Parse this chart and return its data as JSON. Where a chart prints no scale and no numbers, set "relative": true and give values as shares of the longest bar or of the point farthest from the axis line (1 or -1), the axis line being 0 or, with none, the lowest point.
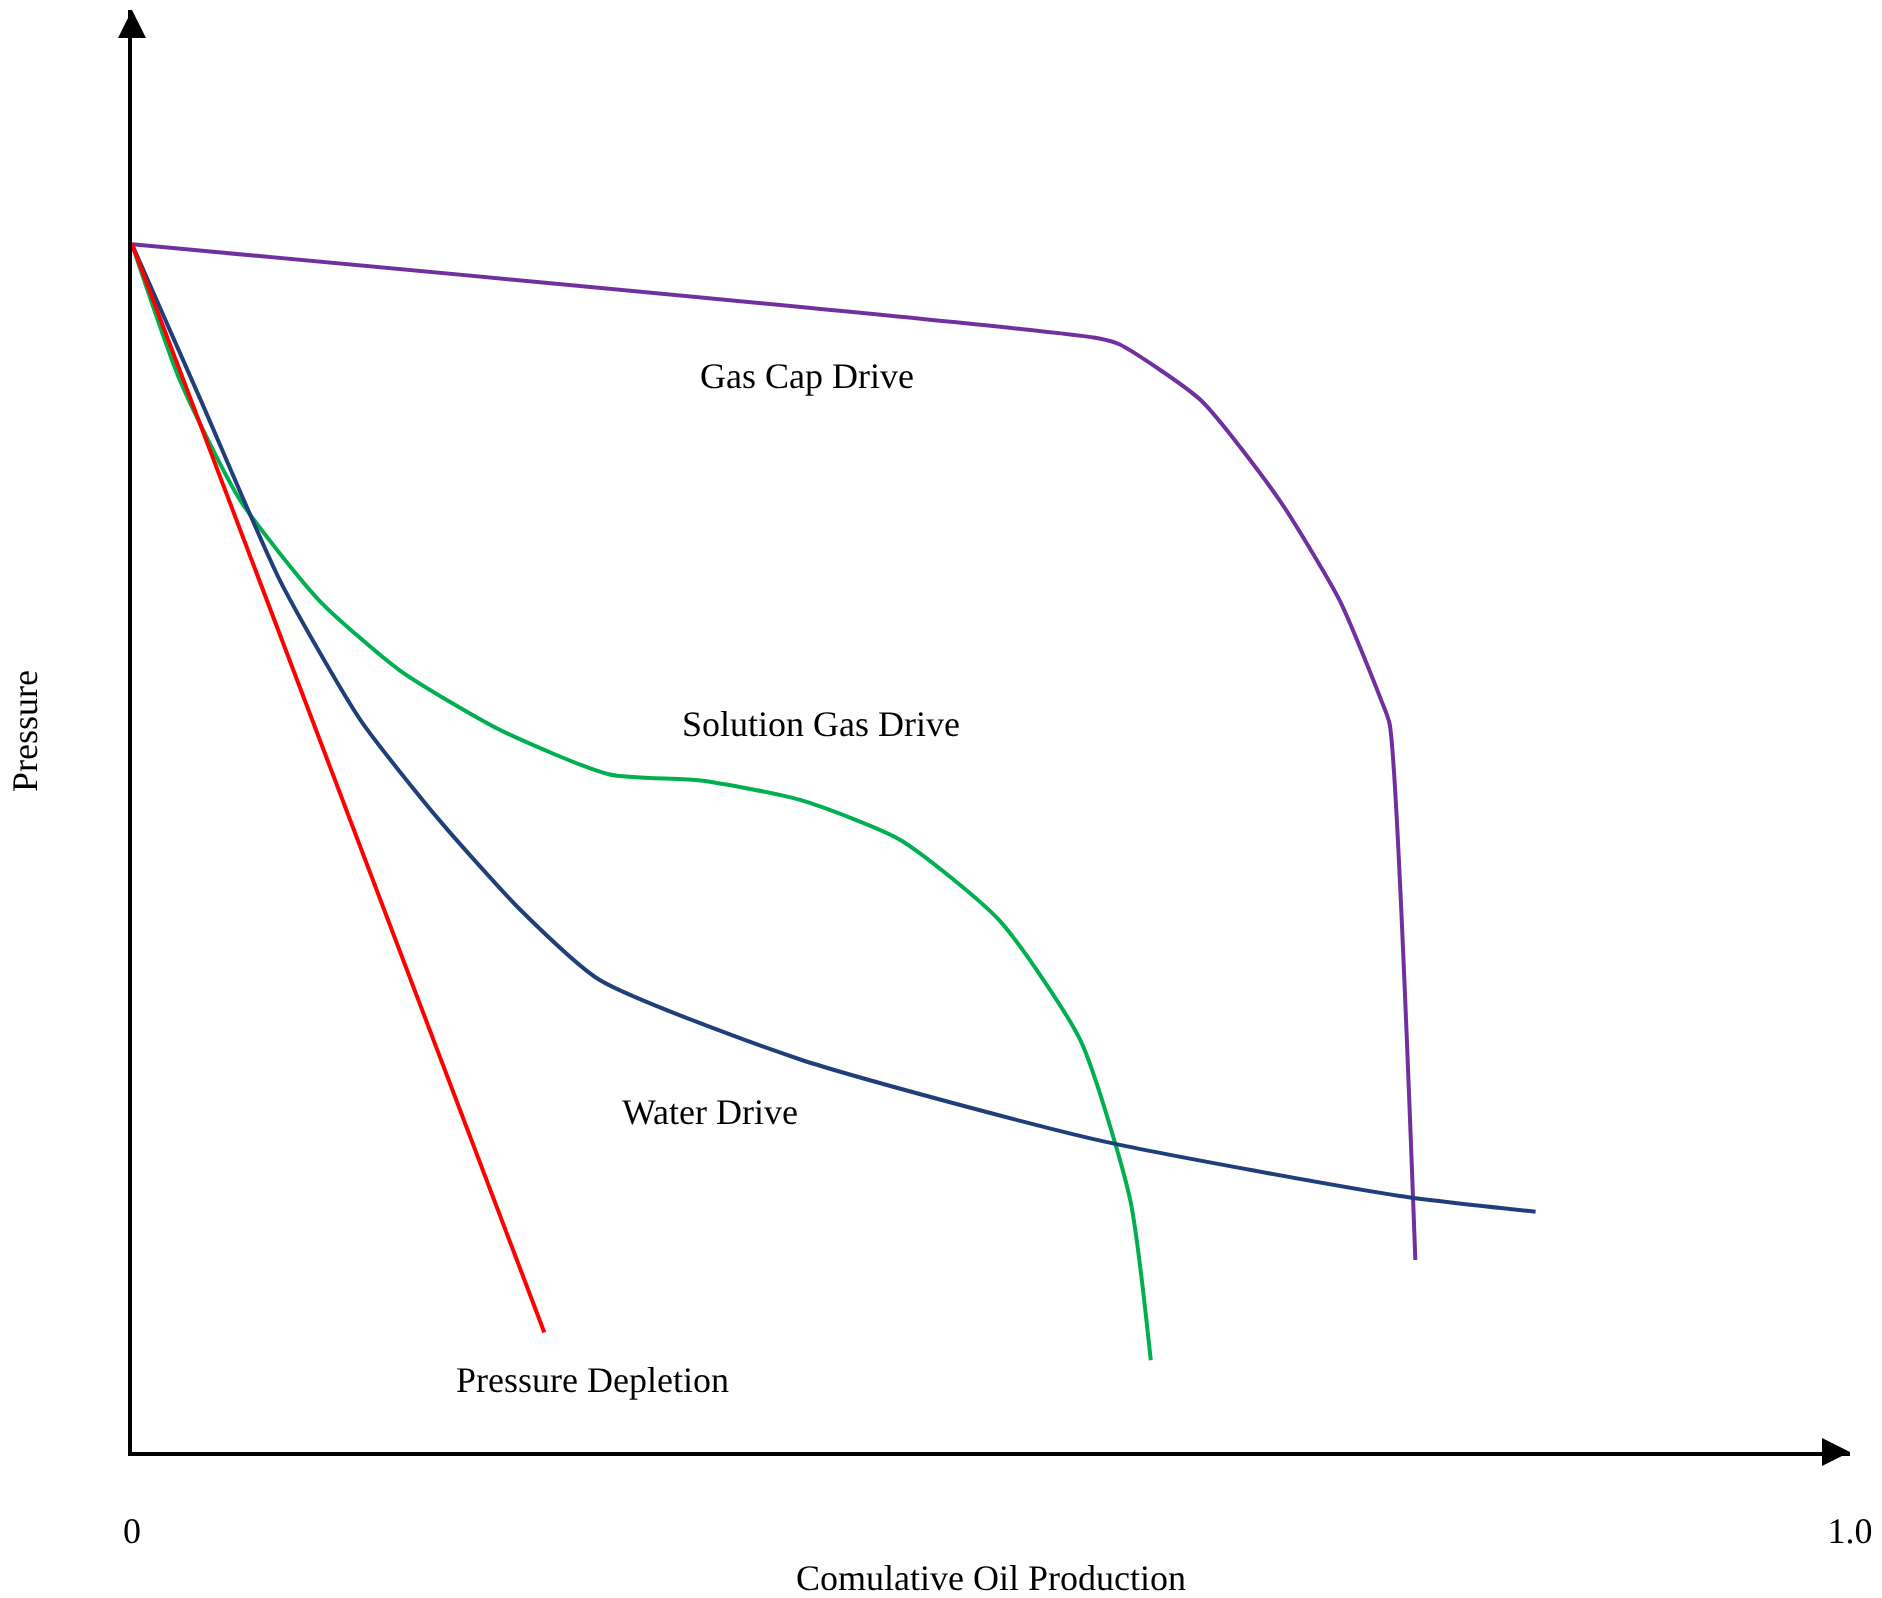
{
  "chart_data": {
    "type": "line",
    "relative": true,
    "xlabel": "Comulative Oil Production",
    "ylabel": "Pressure",
    "xlim": [
      0,
      1.0
    ],
    "xticks": [
      0,
      {
        "value": 1,
        "label": "1.0"
      }
    ],
    "legend": false,
    "marker": "none",
    "line_style": "solid",
    "series": [
      {
        "name": "Gas Cap Drive",
        "color": "#7030a0",
        "x": [
          0,
          0.563,
          0.575,
          0.622,
          0.668,
          0.703,
          0.727,
          0.732,
          0.747
        ],
        "values": [
          1,
          0.922,
          0.917,
          0.871,
          0.788,
          0.705,
          0.623,
          0.603,
          0.159
        ]
      },
      {
        "name": "Solution Gas Drive",
        "color": "#00b050",
        "x": [
          0,
          0.028,
          0.063,
          0.109,
          0.156,
          0.214,
          0.278,
          0.331,
          0.389,
          0.447,
          0.505,
          0.552,
          0.581,
          0.593
        ],
        "values": [
          1,
          0.887,
          0.788,
          0.705,
          0.647,
          0.598,
          0.561,
          0.556,
          0.54,
          0.507,
          0.44,
          0.341,
          0.209,
          0.076
        ]
      },
      {
        "name": "Water Drive",
        "color": "#1f3f7a",
        "x": [
          0,
          0.04,
          0.086,
          0.133,
          0.179,
          0.226,
          0.272,
          0.389,
          0.563,
          0.738,
          0.817
        ],
        "values": [
          1,
          0.871,
          0.722,
          0.606,
          0.523,
          0.449,
          0.391,
          0.325,
          0.258,
          0.212,
          0.199
        ]
      },
      {
        "name": "Pressure Depletion",
        "color": "#ff0000",
        "x": [
          0,
          0.24
        ],
        "values": [
          1,
          0.099
        ]
      }
    ]
  }
}
